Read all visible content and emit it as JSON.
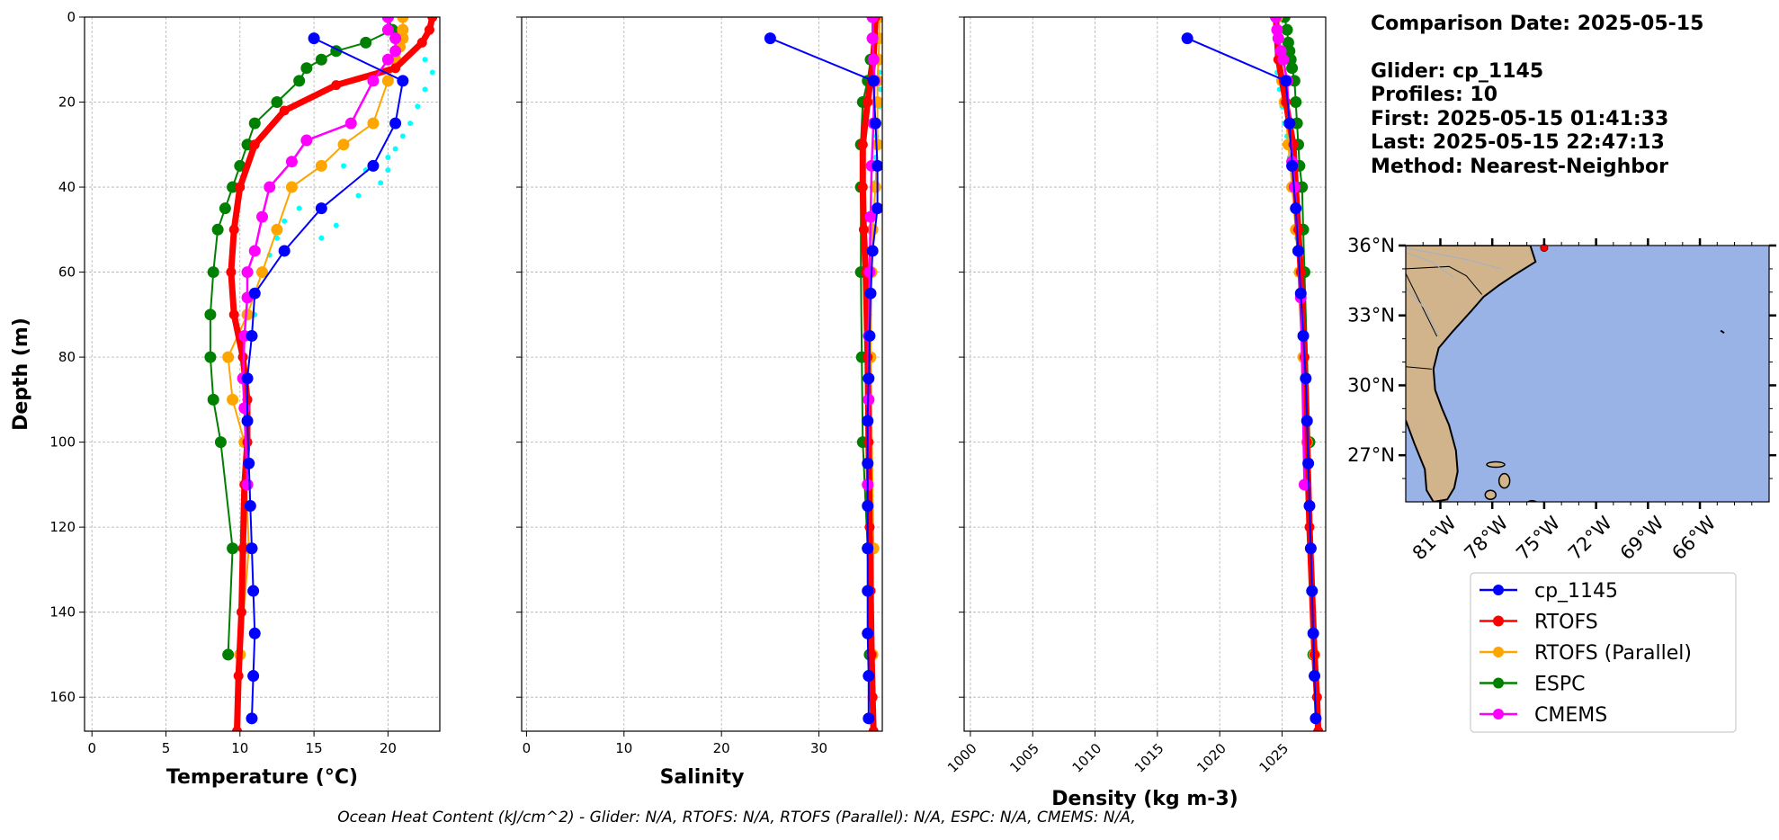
{
  "info": {
    "comparison_date": "Comparison Date: 2025-05-15",
    "glider": "Glider: cp_1145",
    "profiles": "Profiles: 10",
    "first": "First: 2025-05-15 01:41:33",
    "last": "Last: 2025-05-15 22:47:13",
    "method": "Method: Nearest-Neighbor"
  },
  "footer": "Ocean Heat Content (kJ/cm^2) - Glider: N/A,  RTOFS: N/A,  RTOFS (Parallel): N/A,  ESPC: N/A,  CMEMS: N/A,",
  "colors": {
    "cp_1145": "#0000ff",
    "RTOFS": "#ff0000",
    "RTOFS (Parallel)": "#ffa500",
    "ESPC": "#008000",
    "CMEMS": "#ff00ff",
    "raw_glider": "#00ffff",
    "land": "#d2b48c",
    "ocean": "#99b3e6"
  },
  "chart_data": [
    {
      "type": "line",
      "name": "temperature",
      "xlabel": "Temperature (°C)",
      "ylabel": "Depth (m)",
      "xlim": [
        -0.5,
        23.5
      ],
      "ylim": [
        168,
        0
      ],
      "xticks": [
        0,
        5,
        10,
        15,
        20
      ],
      "yticks": [
        0,
        20,
        40,
        60,
        80,
        100,
        120,
        140,
        160
      ],
      "grid": true,
      "series": [
        {
          "name": "cp_1145",
          "x": [
            15,
            21,
            20.5,
            19,
            15.5,
            13,
            11,
            10.8,
            10.5,
            10.5,
            10.6,
            10.7,
            10.8,
            10.9,
            11,
            10.9,
            10.8
          ],
          "y": [
            5,
            15,
            25,
            35,
            45,
            55,
            65,
            75,
            85,
            95,
            105,
            115,
            125,
            135,
            145,
            155,
            165
          ]
        },
        {
          "name": "RTOFS",
          "x": [
            23,
            22.8,
            22.3,
            20.5,
            16.5,
            13,
            11,
            10,
            9.6,
            9.4,
            9.6,
            10.2,
            10.5,
            10.5,
            10.3,
            10.2,
            10.1,
            9.9,
            9.8
          ],
          "y": [
            0,
            3,
            6,
            12,
            16,
            22,
            30,
            40,
            50,
            60,
            70,
            80,
            90,
            100,
            110,
            125,
            140,
            155,
            168
          ]
        },
        {
          "name": "RTOFS (Parallel)",
          "x": [
            21,
            21,
            21,
            20.8,
            20.5,
            20,
            19,
            17,
            15.5,
            13.5,
            12.5,
            11.5,
            10.5,
            9.2,
            9.5,
            10.3,
            10.6,
            10
          ],
          "y": [
            0,
            3,
            5,
            7,
            10,
            15,
            25,
            30,
            35,
            40,
            50,
            60,
            70,
            80,
            90,
            100,
            125,
            150
          ]
        },
        {
          "name": "ESPC",
          "x": [
            20,
            20.3,
            18.5,
            16.5,
            15.5,
            14.5,
            14,
            12.5,
            11,
            10.5,
            10,
            9.5,
            9,
            8.5,
            8.2,
            8,
            8,
            8.2,
            8.7,
            9.5,
            9.2
          ],
          "y": [
            0,
            3,
            6,
            8,
            10,
            12,
            15,
            20,
            25,
            30,
            35,
            40,
            45,
            50,
            60,
            70,
            80,
            90,
            100,
            125,
            150
          ]
        },
        {
          "name": "CMEMS",
          "x": [
            20,
            20,
            20.5,
            20.5,
            20,
            19,
            17.5,
            14.5,
            13.5,
            12,
            11.5,
            11,
            10.5,
            10.5,
            10.3,
            10.2,
            10.3,
            10.5
          ],
          "y": [
            0,
            3,
            5,
            8,
            10,
            15,
            25,
            29,
            34,
            40,
            47,
            55,
            60,
            66,
            75,
            85,
            92,
            110
          ]
        },
        {
          "name": "raw_glider",
          "x": [
            22.5,
            23,
            22.5,
            22,
            21.5,
            21,
            20.5,
            20,
            20,
            19.5,
            18.5,
            18,
            17,
            16.5,
            15.5,
            14,
            13,
            12.5,
            12,
            11.5,
            11,
            11,
            10.8,
            10.5,
            10.5,
            10.5
          ],
          "y": [
            10,
            13,
            17,
            21,
            25,
            28,
            31,
            33,
            36,
            39,
            36,
            42,
            35,
            49,
            52,
            45,
            48,
            52,
            56,
            60,
            65,
            70,
            75,
            85,
            95,
            105
          ]
        }
      ]
    },
    {
      "type": "line",
      "name": "salinity",
      "xlabel": "Salinity",
      "xlim": [
        -0.5,
        36.5
      ],
      "ylim": [
        168,
        0
      ],
      "xticks": [
        0,
        10,
        20,
        30
      ],
      "grid": true,
      "series": [
        {
          "name": "cp_1145",
          "x": [
            25,
            35.6,
            35.8,
            36,
            36,
            35.5,
            35.3,
            35.2,
            35.1,
            35,
            35,
            35,
            35,
            35,
            35,
            35.1,
            35.1
          ],
          "y": [
            5,
            15,
            25,
            35,
            45,
            55,
            65,
            75,
            85,
            95,
            105,
            115,
            125,
            135,
            145,
            155,
            165
          ]
        },
        {
          "name": "RTOFS",
          "x": [
            35.8,
            35.6,
            35,
            34.5,
            34.5,
            34.6,
            34.8,
            35,
            35.1,
            35.2,
            35.3,
            35.4,
            35.5,
            35.6
          ],
          "y": [
            0,
            10,
            20,
            30,
            40,
            50,
            60,
            80,
            100,
            120,
            135,
            150,
            160,
            168
          ]
        },
        {
          "name": "RTOFS (Parallel)",
          "x": [
            36.2,
            36.2,
            36.1,
            36,
            36,
            36,
            35.8,
            35.5,
            35.4,
            35.3,
            35.6,
            35.5
          ],
          "y": [
            0,
            5,
            10,
            15,
            20,
            30,
            40,
            50,
            60,
            80,
            125,
            150
          ]
        },
        {
          "name": "ESPC",
          "x": [
            35.5,
            35.5,
            35.3,
            35,
            34.5,
            34.3,
            34.3,
            34.3,
            34.4,
            34.5,
            35,
            35.2
          ],
          "y": [
            0,
            5,
            10,
            15,
            20,
            30,
            40,
            60,
            80,
            100,
            125,
            150
          ]
        },
        {
          "name": "CMEMS",
          "x": [
            35.5,
            35.5,
            35.6,
            35.7,
            35.6,
            35.4,
            35.3,
            35.2,
            35.1,
            35.1,
            35
          ],
          "y": [
            0,
            5,
            10,
            15,
            25,
            35,
            47,
            60,
            75,
            90,
            110
          ]
        },
        {
          "name": "raw_glider",
          "x": [
            36.2,
            36.3,
            36.2,
            36,
            35.9,
            35.8,
            35.7,
            35.5,
            35.4,
            35.3,
            35.2,
            35.1,
            35
          ],
          "y": [
            13,
            17,
            21,
            25,
            28,
            33,
            39,
            45,
            52,
            60,
            70,
            80,
            95
          ]
        }
      ]
    },
    {
      "type": "line",
      "name": "density",
      "xlabel": "Density (kg m-3)",
      "xlim": [
        999.5,
        1028.5
      ],
      "ylim": [
        168,
        0
      ],
      "xticks": [
        1000,
        1005,
        1010,
        1015,
        1020,
        1025
      ],
      "grid": true,
      "series": [
        {
          "name": "cp_1145",
          "x": [
            1017.4,
            1025.3,
            1025.6,
            1025.8,
            1026.1,
            1026.3,
            1026.5,
            1026.7,
            1026.9,
            1027,
            1027.1,
            1027.2,
            1027.3,
            1027.4,
            1027.5,
            1027.6,
            1027.7
          ],
          "y": [
            5,
            15,
            25,
            35,
            45,
            55,
            65,
            75,
            85,
            95,
            105,
            115,
            125,
            135,
            145,
            155,
            165
          ]
        },
        {
          "name": "RTOFS",
          "x": [
            1024.5,
            1024.7,
            1025.3,
            1025.9,
            1026.1,
            1026.3,
            1026.5,
            1026.8,
            1027,
            1027.2,
            1027.4,
            1027.6,
            1027.8,
            1027.9
          ],
          "y": [
            0,
            10,
            20,
            30,
            40,
            50,
            60,
            80,
            100,
            120,
            135,
            150,
            160,
            168
          ]
        },
        {
          "name": "RTOFS (Parallel)",
          "x": [
            1024.6,
            1024.7,
            1024.8,
            1025,
            1025.2,
            1025.5,
            1025.8,
            1026.1,
            1026.4,
            1026.7,
            1027,
            1027.3,
            1027.6
          ],
          "y": [
            0,
            5,
            10,
            15,
            20,
            30,
            40,
            50,
            60,
            80,
            100,
            125,
            150
          ]
        },
        {
          "name": "ESPC",
          "x": [
            1025.2,
            1025.4,
            1025.5,
            1025.6,
            1025.7,
            1025.8,
            1026,
            1026.1,
            1026.2,
            1026.3,
            1026.4,
            1026.6,
            1026.7,
            1026.8,
            1027.2,
            1027.5
          ],
          "y": [
            0,
            3,
            6,
            8,
            10,
            12,
            15,
            20,
            25,
            30,
            35,
            40,
            50,
            60,
            100,
            150
          ]
        },
        {
          "name": "CMEMS",
          "x": [
            1024.5,
            1024.6,
            1024.7,
            1024.9,
            1025.1,
            1025.4,
            1025.6,
            1025.8,
            1026,
            1026.3,
            1026.5,
            1026.8
          ],
          "y": [
            0,
            3,
            5,
            8,
            10,
            15,
            25,
            34,
            40,
            55,
            66,
            110
          ]
        },
        {
          "name": "raw_glider",
          "x": [
            1024.6,
            1024.8,
            1025,
            1025.2,
            1025.4,
            1025.6,
            1025.8,
            1026,
            1026.2,
            1026.4,
            1026.6
          ],
          "y": [
            13,
            17,
            21,
            25,
            28,
            33,
            39,
            45,
            52,
            60,
            70
          ]
        }
      ]
    },
    {
      "type": "map",
      "name": "location",
      "lon_range": [
        -83,
        -62
      ],
      "lat_range": [
        25,
        36
      ],
      "lat_labels": [
        "36°N",
        "33°N",
        "30°N",
        "27°N"
      ],
      "lat_values": [
        36,
        33,
        30,
        27
      ],
      "lon_labels": [
        "81°W",
        "78°W",
        "75°W",
        "72°W",
        "69°W",
        "66°W"
      ],
      "lon_values": [
        -81,
        -78,
        -75,
        -72,
        -69,
        -66
      ],
      "marker": {
        "lon": -75.0,
        "lat": 35.9
      }
    }
  ],
  "legend": {
    "placement": "bottom-right",
    "entries": [
      "cp_1145",
      "RTOFS",
      "RTOFS (Parallel)",
      "ESPC",
      "CMEMS"
    ]
  }
}
